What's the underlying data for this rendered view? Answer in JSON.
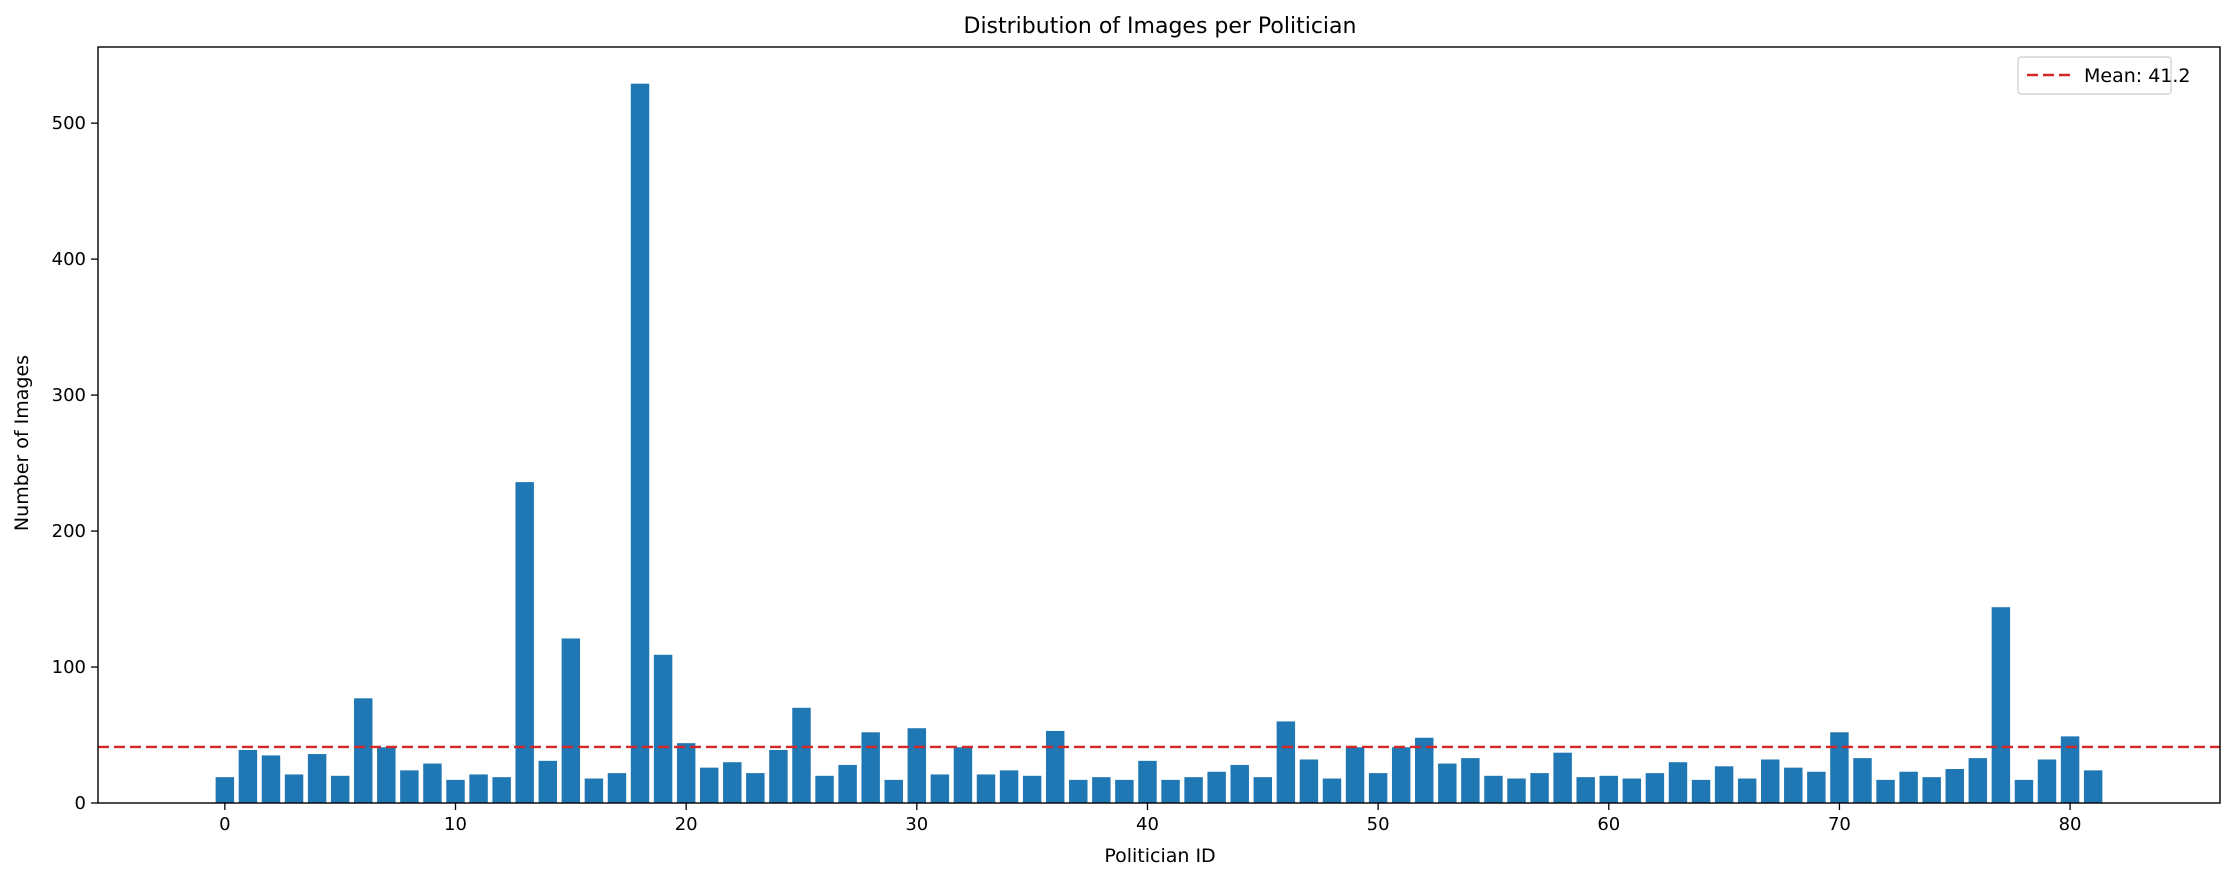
{
  "chart_data": {
    "type": "bar",
    "title": "Distribution of Images per Politician",
    "xlabel": "Politician ID",
    "ylabel": "Number of Images",
    "x": [
      0,
      1,
      2,
      3,
      4,
      5,
      6,
      7,
      8,
      9,
      10,
      11,
      12,
      13,
      14,
      15,
      16,
      17,
      18,
      19,
      20,
      21,
      22,
      23,
      24,
      25,
      26,
      27,
      28,
      29,
      30,
      31,
      32,
      33,
      34,
      35,
      36,
      37,
      38,
      39,
      40,
      41,
      42,
      43,
      44,
      45,
      46,
      47,
      48,
      49,
      50,
      51,
      52,
      53,
      54,
      55,
      56,
      57,
      58,
      59,
      60,
      61,
      62,
      63,
      64,
      65,
      66,
      67,
      68,
      69,
      70,
      71,
      72,
      73,
      74,
      75,
      76,
      77,
      78,
      79,
      80,
      81
    ],
    "values": [
      19,
      39,
      35,
      21,
      36,
      20,
      77,
      41,
      24,
      29,
      17,
      21,
      19,
      236,
      31,
      121,
      18,
      22,
      529,
      109,
      44,
      26,
      30,
      22,
      39,
      70,
      20,
      28,
      52,
      17,
      55,
      21,
      41,
      21,
      24,
      20,
      53,
      17,
      19,
      17,
      31,
      17,
      19,
      23,
      28,
      19,
      60,
      32,
      18,
      41,
      22,
      41,
      48,
      29,
      33,
      20,
      18,
      22,
      37,
      19,
      20,
      18,
      22,
      30,
      17,
      27,
      18,
      32,
      26,
      23,
      52,
      33,
      17,
      23,
      19,
      25,
      33,
      144,
      17,
      32,
      49,
      24
    ],
    "xlim": [
      -5.5,
      86.5
    ],
    "ylim": [
      0,
      556
    ],
    "xticks": [
      0,
      10,
      20,
      30,
      40,
      50,
      60,
      70,
      80
    ],
    "xtick_labels": [
      "0",
      "10",
      "20",
      "30",
      "40",
      "50",
      "60",
      "70",
      "80"
    ],
    "yticks": [
      0,
      100,
      200,
      300,
      400,
      500
    ],
    "ytick_labels": [
      "0",
      "100",
      "200",
      "300",
      "400",
      "500"
    ],
    "bar_color": "#1f77b4",
    "mean": 41.2,
    "mean_line_color": "#d62728",
    "legend": {
      "label": "Mean: 41.2",
      "placement": "top-right"
    },
    "grid": false
  }
}
